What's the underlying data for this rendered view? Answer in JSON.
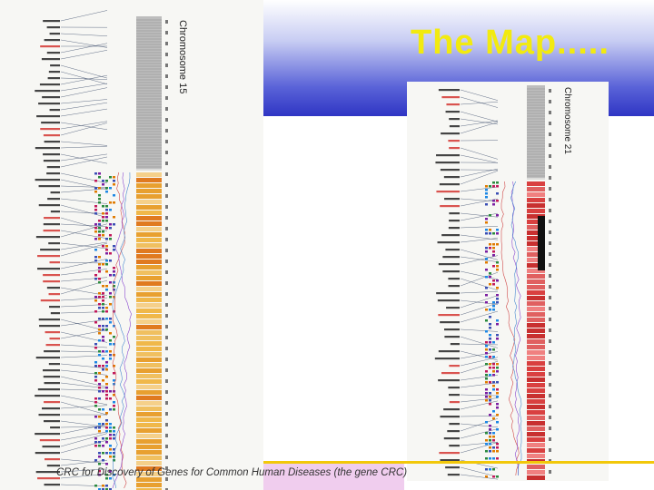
{
  "slide": {
    "title": "The Map.....",
    "footer": "CRC for Discovery of Genes for Common Human Diseases (the gene CRC)"
  },
  "maps": {
    "left": {
      "chromosome_label": "Chromosome 15"
    },
    "right": {
      "chromosome_label": "Chromosome 21"
    }
  },
  "colors": {
    "title": "#f2ea10",
    "banner_dark": "#2f35c4",
    "footer_band": "#f0cdee",
    "footer_line": "#f2c80a"
  }
}
